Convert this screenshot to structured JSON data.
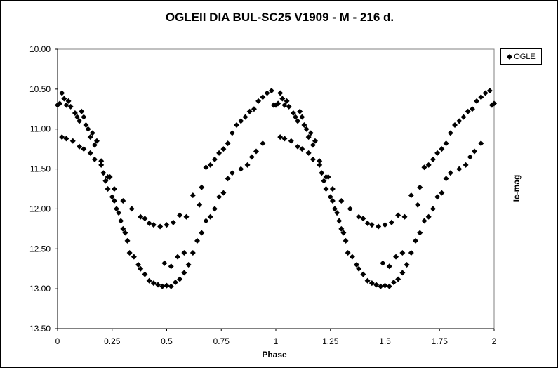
{
  "chart_data": {
    "type": "scatter",
    "title": "OGLEII DIA BUL-SC25 V1909 - M - 216 d.",
    "xlabel": "Phase",
    "ylabel": "Ic-mag",
    "xlim": [
      0,
      2
    ],
    "ylim": [
      10.0,
      13.5
    ],
    "y_inverted": true,
    "xticks": [
      "0",
      "0.25",
      "0.5",
      "0.75",
      "1",
      "1.25",
      "1.5",
      "1.75",
      "2"
    ],
    "yticks": [
      "10.00",
      "10.50",
      "11.00",
      "11.50",
      "12.00",
      "12.50",
      "13.00",
      "13.50"
    ],
    "grid": false,
    "legend": {
      "placement": "top-right",
      "entries": [
        "OGLE"
      ]
    },
    "marker": "diamond",
    "color": "#000000",
    "series": [
      {
        "name": "OGLE",
        "points": [
          [
            0.0,
            10.7
          ],
          [
            0.01,
            10.68
          ],
          [
            0.02,
            10.55
          ],
          [
            0.03,
            10.62
          ],
          [
            0.04,
            10.7
          ],
          [
            0.05,
            10.65
          ],
          [
            0.06,
            10.72
          ],
          [
            0.08,
            10.8
          ],
          [
            0.09,
            10.85
          ],
          [
            0.1,
            10.9
          ],
          [
            0.11,
            10.78
          ],
          [
            0.12,
            10.85
          ],
          [
            0.13,
            10.95
          ],
          [
            0.14,
            11.0
          ],
          [
            0.15,
            11.1
          ],
          [
            0.16,
            11.05
          ],
          [
            0.17,
            11.2
          ],
          [
            0.18,
            11.15
          ],
          [
            0.2,
            11.4
          ],
          [
            0.21,
            11.55
          ],
          [
            0.22,
            11.65
          ],
          [
            0.23,
            11.75
          ],
          [
            0.24,
            11.6
          ],
          [
            0.25,
            11.85
          ],
          [
            0.26,
            11.9
          ],
          [
            0.27,
            12.0
          ],
          [
            0.28,
            12.05
          ],
          [
            0.29,
            12.15
          ],
          [
            0.3,
            12.25
          ],
          [
            0.31,
            12.3
          ],
          [
            0.32,
            12.4
          ],
          [
            0.33,
            12.55
          ],
          [
            0.35,
            12.6
          ],
          [
            0.37,
            12.7
          ],
          [
            0.38,
            12.75
          ],
          [
            0.4,
            12.82
          ],
          [
            0.42,
            12.9
          ],
          [
            0.44,
            12.93
          ],
          [
            0.46,
            12.95
          ],
          [
            0.48,
            12.97
          ],
          [
            0.5,
            12.96
          ],
          [
            0.52,
            12.97
          ],
          [
            0.54,
            12.92
          ],
          [
            0.56,
            12.88
          ],
          [
            0.58,
            12.8
          ],
          [
            0.6,
            12.7
          ],
          [
            0.62,
            12.55
          ],
          [
            0.64,
            12.4
          ],
          [
            0.66,
            12.3
          ],
          [
            0.68,
            12.15
          ],
          [
            0.7,
            12.1
          ],
          [
            0.72,
            12.0
          ],
          [
            0.74,
            11.85
          ],
          [
            0.76,
            11.8
          ],
          [
            0.78,
            11.62
          ],
          [
            0.8,
            11.55
          ],
          [
            0.66,
            11.73
          ],
          [
            0.68,
            11.48
          ],
          [
            0.7,
            11.45
          ],
          [
            0.72,
            11.38
          ],
          [
            0.74,
            11.3
          ],
          [
            0.76,
            11.25
          ],
          [
            0.78,
            11.18
          ],
          [
            0.8,
            11.05
          ],
          [
            0.82,
            10.95
          ],
          [
            0.84,
            10.9
          ],
          [
            0.86,
            10.85
          ],
          [
            0.88,
            10.78
          ],
          [
            0.9,
            10.75
          ],
          [
            0.92,
            10.65
          ],
          [
            0.94,
            10.6
          ],
          [
            0.96,
            10.55
          ],
          [
            0.98,
            10.52
          ],
          [
            0.99,
            10.7
          ],
          [
            0.02,
            11.1
          ],
          [
            0.04,
            11.12
          ],
          [
            0.07,
            11.15
          ],
          [
            0.1,
            11.22
          ],
          [
            0.12,
            11.25
          ],
          [
            0.15,
            11.3
          ],
          [
            0.17,
            11.38
          ],
          [
            0.2,
            11.45
          ],
          [
            0.23,
            11.6
          ],
          [
            0.26,
            11.75
          ],
          [
            0.3,
            11.9
          ],
          [
            0.34,
            12.0
          ],
          [
            0.38,
            12.1
          ],
          [
            0.4,
            12.12
          ],
          [
            0.42,
            12.18
          ],
          [
            0.44,
            12.2
          ],
          [
            0.47,
            12.22
          ],
          [
            0.5,
            12.2
          ],
          [
            0.53,
            12.17
          ],
          [
            0.56,
            12.08
          ],
          [
            0.59,
            12.1
          ],
          [
            0.62,
            11.83
          ],
          [
            0.65,
            11.95
          ],
          [
            0.49,
            12.68
          ],
          [
            0.52,
            12.72
          ],
          [
            0.55,
            12.6
          ],
          [
            0.58,
            12.55
          ],
          [
            0.84,
            11.5
          ],
          [
            0.87,
            11.45
          ],
          [
            0.89,
            11.35
          ],
          [
            0.91,
            11.28
          ],
          [
            0.94,
            11.18
          ],
          [
            1.0,
            10.7
          ],
          [
            1.01,
            10.68
          ],
          [
            1.02,
            10.55
          ],
          [
            1.03,
            10.62
          ],
          [
            1.04,
            10.7
          ],
          [
            1.05,
            10.65
          ],
          [
            1.06,
            10.72
          ],
          [
            1.08,
            10.8
          ],
          [
            1.09,
            10.85
          ],
          [
            1.1,
            10.9
          ],
          [
            1.11,
            10.78
          ],
          [
            1.12,
            10.85
          ],
          [
            1.13,
            10.95
          ],
          [
            1.14,
            11.0
          ],
          [
            1.15,
            11.1
          ],
          [
            1.16,
            11.05
          ],
          [
            1.17,
            11.2
          ],
          [
            1.18,
            11.15
          ],
          [
            1.2,
            11.4
          ],
          [
            1.21,
            11.55
          ],
          [
            1.22,
            11.65
          ],
          [
            1.23,
            11.75
          ],
          [
            1.24,
            11.6
          ],
          [
            1.25,
            11.85
          ],
          [
            1.26,
            11.9
          ],
          [
            1.27,
            12.0
          ],
          [
            1.28,
            12.05
          ],
          [
            1.29,
            12.15
          ],
          [
            1.3,
            12.25
          ],
          [
            1.31,
            12.3
          ],
          [
            1.32,
            12.4
          ],
          [
            1.33,
            12.55
          ],
          [
            1.35,
            12.6
          ],
          [
            1.37,
            12.7
          ],
          [
            1.38,
            12.75
          ],
          [
            1.4,
            12.82
          ],
          [
            1.42,
            12.9
          ],
          [
            1.44,
            12.93
          ],
          [
            1.46,
            12.95
          ],
          [
            1.48,
            12.97
          ],
          [
            1.5,
            12.96
          ],
          [
            1.52,
            12.97
          ],
          [
            1.54,
            12.92
          ],
          [
            1.56,
            12.88
          ],
          [
            1.58,
            12.8
          ],
          [
            1.6,
            12.7
          ],
          [
            1.62,
            12.55
          ],
          [
            1.64,
            12.4
          ],
          [
            1.66,
            12.3
          ],
          [
            1.68,
            12.15
          ],
          [
            1.7,
            12.1
          ],
          [
            1.72,
            12.0
          ],
          [
            1.74,
            11.85
          ],
          [
            1.76,
            11.8
          ],
          [
            1.78,
            11.62
          ],
          [
            1.8,
            11.55
          ],
          [
            1.66,
            11.73
          ],
          [
            1.68,
            11.48
          ],
          [
            1.7,
            11.45
          ],
          [
            1.72,
            11.38
          ],
          [
            1.74,
            11.3
          ],
          [
            1.76,
            11.25
          ],
          [
            1.78,
            11.18
          ],
          [
            1.8,
            11.05
          ],
          [
            1.82,
            10.95
          ],
          [
            1.84,
            10.9
          ],
          [
            1.86,
            10.85
          ],
          [
            1.88,
            10.78
          ],
          [
            1.9,
            10.75
          ],
          [
            1.92,
            10.65
          ],
          [
            1.94,
            10.6
          ],
          [
            1.96,
            10.55
          ],
          [
            1.98,
            10.52
          ],
          [
            1.99,
            10.7
          ],
          [
            1.02,
            11.1
          ],
          [
            1.04,
            11.12
          ],
          [
            1.07,
            11.15
          ],
          [
            1.1,
            11.22
          ],
          [
            1.12,
            11.25
          ],
          [
            1.15,
            11.3
          ],
          [
            1.17,
            11.38
          ],
          [
            1.2,
            11.45
          ],
          [
            1.23,
            11.6
          ],
          [
            1.26,
            11.75
          ],
          [
            1.3,
            11.9
          ],
          [
            1.34,
            12.0
          ],
          [
            1.38,
            12.1
          ],
          [
            1.4,
            12.12
          ],
          [
            1.42,
            12.18
          ],
          [
            1.44,
            12.2
          ],
          [
            1.47,
            12.22
          ],
          [
            1.5,
            12.2
          ],
          [
            1.53,
            12.17
          ],
          [
            1.56,
            12.08
          ],
          [
            1.59,
            12.1
          ],
          [
            1.62,
            11.83
          ],
          [
            1.65,
            11.95
          ],
          [
            1.49,
            12.68
          ],
          [
            1.52,
            12.72
          ],
          [
            1.55,
            12.6
          ],
          [
            1.58,
            12.55
          ],
          [
            1.84,
            11.5
          ],
          [
            1.87,
            11.45
          ],
          [
            1.89,
            11.35
          ],
          [
            1.91,
            11.28
          ],
          [
            1.94,
            11.18
          ],
          [
            2.0,
            10.68
          ]
        ]
      }
    ]
  }
}
